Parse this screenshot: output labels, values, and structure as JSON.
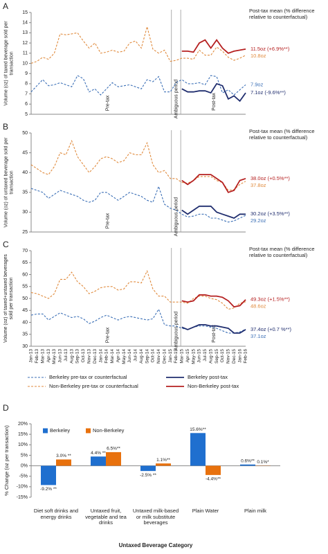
{
  "chart_data": [
    {
      "type": "line",
      "panel_label": "A",
      "ylabel": "Volume (oz) of taxed beverage sold per transaction",
      "annotation": "Post-tax mean (% difference relative to counterfactual)",
      "pre_label": "Pre-tax",
      "ambiguous_label": "Ambiguous period",
      "post_label": "Post-tax",
      "ylim": [
        5,
        15
      ],
      "yticks": [
        5,
        6,
        7,
        8,
        9,
        10,
        11,
        12,
        13,
        14,
        15
      ],
      "series": [
        {
          "color": "#3b6fb6",
          "dashed": true,
          "values": [
            7.2,
            7.8,
            8.4,
            7.8,
            7.9,
            8.1,
            7.9,
            7.7,
            8.8,
            8.5,
            7.2,
            7.5,
            6.9,
            7.5,
            8.1,
            7.7,
            7.8,
            7.9,
            7.7,
            7.5,
            8.4,
            8.2,
            8.7,
            7.2,
            7.2,
            8.1,
            8.4,
            8.0,
            8.0,
            8.1,
            7.9,
            8.8,
            8.7,
            7.1,
            7.4,
            6.9,
            7.4,
            7.9
          ]
        },
        {
          "color": "#e08a3c",
          "dashed": true,
          "values": [
            10.0,
            10.2,
            10.6,
            10.4,
            11.0,
            12.9,
            12.8,
            12.9,
            13.0,
            12.2,
            11.5,
            12.0,
            11.0,
            11.1,
            11.3,
            11.1,
            11.2,
            12.0,
            12.2,
            11.5,
            13.6,
            11.4,
            11.0,
            11.3,
            10.2,
            10.3,
            10.5,
            10.5,
            10.4,
            11.3,
            10.8,
            10.8,
            11.6,
            11.2,
            10.6,
            10.3,
            10.5,
            10.8
          ]
        },
        {
          "color": "#1f2d6e",
          "dashed": false,
          "values": [
            null,
            null,
            null,
            null,
            null,
            null,
            null,
            null,
            null,
            null,
            null,
            null,
            null,
            null,
            null,
            null,
            null,
            null,
            null,
            null,
            null,
            null,
            null,
            null,
            null,
            null,
            7.5,
            7.2,
            7.2,
            7.3,
            7.3,
            7.1,
            8.0,
            7.8,
            6.5,
            6.8,
            6.3,
            7.1
          ]
        },
        {
          "color": "#b51f1f",
          "dashed": false,
          "values": [
            null,
            null,
            null,
            null,
            null,
            null,
            null,
            null,
            null,
            null,
            null,
            null,
            null,
            null,
            null,
            null,
            null,
            null,
            null,
            null,
            null,
            null,
            null,
            null,
            null,
            null,
            11.2,
            11.2,
            11.1,
            12.0,
            12.3,
            11.5,
            12.3,
            11.5,
            11.0,
            11.2,
            11.3,
            11.4
          ]
        }
      ],
      "end_labels": [
        "11.5oz (+6.9%**)",
        "10.8oz",
        "7.9oz",
        "7.1oz (-9.6%**)"
      ]
    },
    {
      "type": "line",
      "panel_label": "B",
      "ylabel": "Volume (oz) of untaxed beverage sold per transaction",
      "annotation": "Post-tax mean (% difference relative to counterfactual)",
      "pre_label": "Pre-tax",
      "ambiguous_label": "Ambiguous period",
      "ylim": [
        25,
        50
      ],
      "yticks": [
        25,
        30,
        35,
        40,
        45,
        50
      ],
      "series": [
        {
          "color": "#3b6fb6",
          "dashed": true,
          "values": [
            36,
            35.5,
            35,
            33.5,
            34.5,
            35.5,
            35,
            34.5,
            34,
            33,
            32.5,
            33,
            35,
            35,
            34,
            33,
            34,
            35,
            34.5,
            34,
            33,
            32.5,
            36.5,
            32,
            31,
            30.5,
            29.5,
            28.8,
            29,
            29.5,
            29.5,
            28.5,
            28.5,
            28,
            27.5,
            27.8,
            28.5,
            29.2
          ]
        },
        {
          "color": "#e08a3c",
          "dashed": true,
          "values": [
            42,
            41,
            40,
            39.5,
            41.5,
            45,
            44.5,
            48,
            44,
            42,
            40,
            41.5,
            43.5,
            44,
            43.5,
            42.5,
            43,
            45,
            44.5,
            44.5,
            47.5,
            42,
            40,
            40.5,
            38.5,
            38.5,
            37.5,
            37.3,
            38,
            39,
            39,
            39,
            38,
            37.5,
            35.5,
            35.7,
            37,
            37.8
          ]
        },
        {
          "color": "#1f2d6e",
          "dashed": false,
          "values": [
            null,
            null,
            null,
            null,
            null,
            null,
            null,
            null,
            null,
            null,
            null,
            null,
            null,
            null,
            null,
            null,
            null,
            null,
            null,
            null,
            null,
            null,
            null,
            null,
            null,
            null,
            30.5,
            29.5,
            30.5,
            31.5,
            31.5,
            31.5,
            30,
            29.5,
            29,
            28.5,
            29.5,
            29.5
          ]
        },
        {
          "color": "#b51f1f",
          "dashed": false,
          "values": [
            null,
            null,
            null,
            null,
            null,
            null,
            null,
            null,
            null,
            null,
            null,
            null,
            null,
            null,
            null,
            null,
            null,
            null,
            null,
            null,
            null,
            null,
            null,
            null,
            null,
            null,
            38,
            37,
            38,
            39.5,
            39.5,
            39.5,
            38.5,
            37.5,
            35,
            35.5,
            38,
            38.5
          ]
        }
      ],
      "end_labels": [
        "38.0oz (+0.5%**)",
        "37.8oz",
        "30.2oz (+3.5%**)",
        "29.2oz"
      ]
    },
    {
      "type": "line",
      "panel_label": "C",
      "ylabel": "Volume (oz) of taxed+untaxed beverages sold per transaction",
      "annotation": "Post-tax mean (% difference relative to counterfactual)",
      "pre_label": "Pre-tax",
      "ambiguous_label": "Ambiguous period",
      "post_label": "Post-tax",
      "ylim": [
        30,
        70
      ],
      "yticks": [
        30,
        35,
        40,
        45,
        50,
        55,
        60,
        65,
        70
      ],
      "categories": [
        "Jan-13",
        "Feb-13",
        "Mar-13",
        "Apr-13",
        "May-13",
        "Jun-13",
        "Jul-13",
        "Aug-13",
        "Sep-13",
        "Oct-13",
        "Nov-13",
        "Dec-13",
        "Jan-14",
        "Feb-14",
        "Mar-14",
        "Apr-14",
        "May-14",
        "Jun-14",
        "Jul-14",
        "Aug-14",
        "Sep-14",
        "Oct-14",
        "Nov-14",
        "Dec-14",
        "Jan-15",
        "Feb-15",
        "Mar-15",
        "Apr-15",
        "May-15",
        "Jun-15",
        "Jul-15",
        "Aug-15",
        "Sep-15",
        "Oct-15",
        "Nov-15",
        "Dec-15",
        "Jan-16",
        "Feb-16"
      ],
      "series": [
        {
          "name": "Berkeley pre-tax or counterfactual",
          "color": "#3b6fb6",
          "dashed": true,
          "values": [
            43,
            43.5,
            43.5,
            41,
            42.5,
            44,
            43,
            42,
            42.5,
            41.5,
            39.5,
            40.5,
            42,
            43,
            42,
            41,
            42,
            42.5,
            42,
            41.5,
            41,
            41.5,
            45.5,
            39,
            38.5,
            38.5,
            37.5,
            37,
            38,
            38.5,
            38.5,
            38,
            37.5,
            36.5,
            35.5,
            35.5,
            36,
            37.1
          ]
        },
        {
          "name": "Non-Berkeley pre-tax or counterfactual",
          "color": "#e08a3c",
          "dashed": true,
          "values": [
            52.5,
            52,
            51,
            50,
            52,
            58,
            58,
            61,
            57,
            55,
            52,
            53,
            54.5,
            55,
            55,
            53.5,
            54,
            57,
            57,
            56.5,
            61.5,
            54,
            51,
            51,
            48.5,
            48.5,
            48.5,
            48,
            50,
            51,
            51,
            50,
            49.5,
            48,
            45.5,
            46,
            48,
            48.6
          ]
        },
        {
          "name": "Berkeley post-tax",
          "color": "#1f2d6e",
          "dashed": false,
          "values": [
            null,
            null,
            null,
            null,
            null,
            null,
            null,
            null,
            null,
            null,
            null,
            null,
            null,
            null,
            null,
            null,
            null,
            null,
            null,
            null,
            null,
            null,
            null,
            null,
            null,
            null,
            38,
            37,
            38,
            39,
            39,
            38.5,
            38.5,
            38,
            37.5,
            35.5,
            35.5,
            37
          ]
        },
        {
          "name": "Non-Berkeley post-tax",
          "color": "#b51f1f",
          "dashed": false,
          "values": [
            null,
            null,
            null,
            null,
            null,
            null,
            null,
            null,
            null,
            null,
            null,
            null,
            null,
            null,
            null,
            null,
            null,
            null,
            null,
            null,
            null,
            null,
            null,
            null,
            null,
            null,
            49,
            48.5,
            49,
            51.5,
            51.5,
            51,
            51,
            50.5,
            49,
            46.5,
            47,
            49.5
          ]
        }
      ],
      "end_labels": [
        "49.3oz (+1.5%**)",
        "48.6oz",
        "37.4oz (+0.7 %**)",
        "37.1oz"
      ]
    },
    {
      "type": "bar",
      "panel_label": "D",
      "ylabel": "% Change (oz per transaction)",
      "xlabel": "Untaxed Beverage Category",
      "legend": "top-left",
      "ylim": [
        -15,
        20
      ],
      "yticks": [
        {
          "value": -15,
          "label": "-15%"
        },
        {
          "value": -10,
          "label": "-10%"
        },
        {
          "value": -5,
          "label": "-5%"
        },
        {
          "value": 0,
          "label": "0%"
        },
        {
          "value": 5,
          "label": "5%"
        },
        {
          "value": 10,
          "label": "10%"
        },
        {
          "value": 15,
          "label": "15%"
        },
        {
          "value": 20,
          "label": "20%"
        }
      ],
      "categories": [
        "Diet soft drinks and energy drinks",
        "Untaxed fruit, vegetable and tea drinks",
        "Untaxed milk-based or milk substitute beverages",
        "Plain Water",
        "Plain milk"
      ],
      "series": [
        {
          "name": "Berkeley",
          "color": "#1f6fcf",
          "values": [
            -9.2,
            4.4,
            -2.5,
            15.6,
            0.6
          ],
          "value_labels": [
            "-9.2% **",
            "4.4% **",
            "-2.5% **",
            "15.6%**",
            "0.6%**"
          ]
        },
        {
          "name": "Non-Berkeley",
          "color": "#e8710d",
          "values": [
            3.0,
            6.5,
            1.1,
            -4.4,
            0.1
          ],
          "value_labels": [
            "3.0% **",
            "6.5%**",
            "1.1%**",
            "-4.4%**",
            "0.1%*"
          ]
        }
      ]
    }
  ]
}
